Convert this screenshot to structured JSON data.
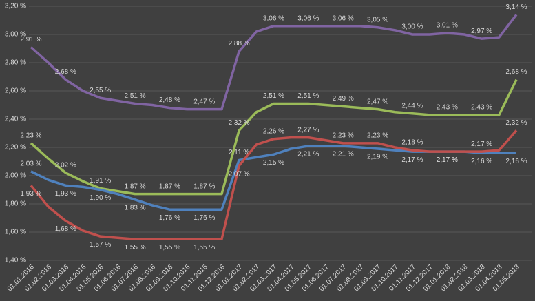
{
  "chart_data": {
    "type": "line",
    "categories": [
      "01.01.2016",
      "01.02.2016",
      "01.03.2016",
      "01.04.2016",
      "01.05.2016",
      "01.06.2016",
      "01.07.2016",
      "01.08.2016",
      "01.09.2016",
      "01.10.2016",
      "01.11.2016",
      "01.12.2016",
      "01.01.2017",
      "01.02.2017",
      "01.03.2017",
      "01.04.2017",
      "01.05.2017",
      "01.06.2017",
      "01.07.2017",
      "01.08.2017",
      "01.09.2017",
      "01.10.2017",
      "01.11.2017",
      "01.12.2017",
      "01.01.2018",
      "01.02.2018",
      "01.03.2018",
      "01.04.2018",
      "01.05.2018"
    ],
    "ylim": [
      1.4,
      3.2
    ],
    "yticks": [
      {
        "value": 1.4,
        "label": "1,40 %"
      },
      {
        "value": 1.6,
        "label": "1,60 %"
      },
      {
        "value": 1.8,
        "label": "1,80 %"
      },
      {
        "value": 2.0,
        "label": "2,00 %"
      },
      {
        "value": 2.2,
        "label": "2,20 %"
      },
      {
        "value": 2.4,
        "label": "2,40 %"
      },
      {
        "value": 2.6,
        "label": "2,60 %"
      },
      {
        "value": 2.8,
        "label": "2,80 %"
      },
      {
        "value": 3.0,
        "label": "3,00 %"
      },
      {
        "value": 3.2,
        "label": "3,20 %"
      }
    ],
    "grid": true,
    "series": [
      {
        "color": "#8064a2",
        "values": [
          2.91,
          2.8,
          2.68,
          2.6,
          2.55,
          2.53,
          2.51,
          2.5,
          2.48,
          2.47,
          2.47,
          2.47,
          2.88,
          3.02,
          3.06,
          3.06,
          3.06,
          3.06,
          3.06,
          3.06,
          3.05,
          3.03,
          3.0,
          3.0,
          3.01,
          3.0,
          2.97,
          2.98,
          3.14
        ],
        "value_labels": [
          "2,91 %",
          null,
          "2,68 %",
          null,
          "2,55 %",
          null,
          "2,51 %",
          null,
          "2,48 %",
          null,
          "2,47 %",
          null,
          "2,88 %",
          null,
          "3,06 %",
          null,
          "3,06 %",
          null,
          "3,06 %",
          null,
          "3,05 %",
          null,
          "3,00 %",
          null,
          "3,01 %",
          null,
          "2,97 %",
          null,
          "3,14 %"
        ]
      },
      {
        "color": "#9bbb59",
        "values": [
          2.23,
          2.12,
          2.02,
          1.96,
          1.91,
          1.89,
          1.87,
          1.87,
          1.87,
          1.87,
          1.87,
          1.87,
          2.32,
          2.45,
          2.51,
          2.51,
          2.51,
          2.5,
          2.49,
          2.48,
          2.47,
          2.45,
          2.44,
          2.43,
          2.43,
          2.43,
          2.43,
          2.43,
          2.68
        ],
        "value_labels": [
          "2,23 %",
          null,
          "2,02 %",
          null,
          "1,91 %",
          null,
          "1,87 %",
          null,
          "1,87 %",
          null,
          "1,87 %",
          null,
          "2,32 %",
          null,
          "2,51 %",
          null,
          "2,51 %",
          null,
          "2,49 %",
          null,
          "2,47 %",
          null,
          "2,44 %",
          null,
          "2,43 %",
          null,
          "2,43 %",
          null,
          "2,68 %"
        ]
      },
      {
        "color": "#4f81bd",
        "values": [
          2.03,
          1.97,
          1.93,
          1.92,
          1.9,
          1.87,
          1.83,
          1.79,
          1.76,
          1.76,
          1.76,
          1.76,
          2.11,
          2.13,
          2.15,
          2.19,
          2.21,
          2.21,
          2.21,
          2.2,
          2.19,
          2.18,
          2.17,
          2.17,
          2.17,
          2.17,
          2.16,
          2.16,
          2.16
        ],
        "value_labels": [
          "2,03 %",
          null,
          "1,93 %",
          null,
          "1,90 %",
          null,
          "1,83 %",
          null,
          "1,76 %",
          null,
          "1,76 %",
          null,
          "2,11 %",
          null,
          "2,15 %",
          null,
          "2,21 %",
          null,
          "2,21 %",
          null,
          "2,19 %",
          null,
          "2,17 %",
          null,
          "2,17 %",
          null,
          "2,16 %",
          null,
          "2,16 %"
        ]
      },
      {
        "color": "#c0504d",
        "values": [
          1.93,
          1.78,
          1.68,
          1.61,
          1.57,
          1.56,
          1.55,
          1.55,
          1.55,
          1.55,
          1.55,
          1.55,
          2.07,
          2.22,
          2.26,
          2.27,
          2.27,
          2.25,
          2.23,
          2.23,
          2.23,
          2.2,
          2.18,
          2.17,
          2.17,
          2.17,
          2.17,
          2.18,
          2.32
        ],
        "value_labels": [
          "1,93 %",
          null,
          "1,68 %",
          null,
          "1,57 %",
          null,
          "1,55 %",
          null,
          "1,55 %",
          null,
          "1,55 %",
          null,
          "2,07 %",
          null,
          "2,26 %",
          null,
          "2,27 %",
          null,
          "2,23 %",
          null,
          "2,23 %",
          null,
          "2,18 %",
          null,
          "2,17 %",
          null,
          "2,17 %",
          null,
          "2,32 %"
        ]
      }
    ]
  }
}
